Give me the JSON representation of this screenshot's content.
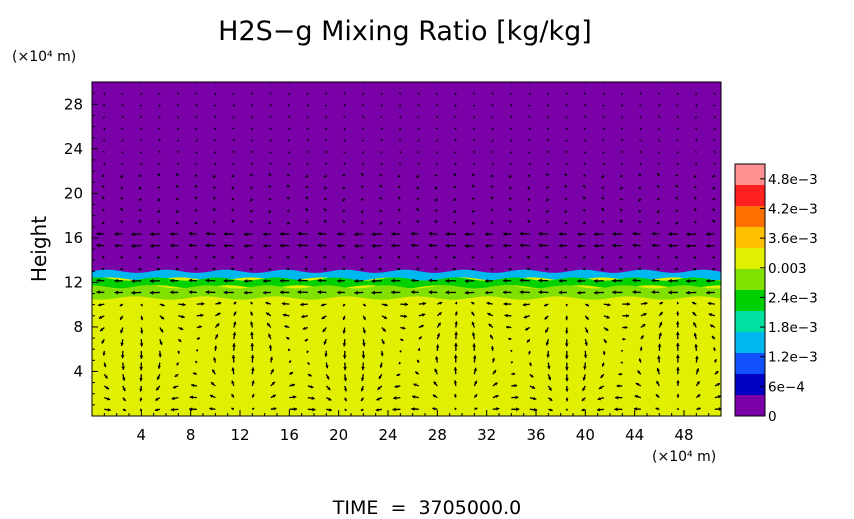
{
  "chart_data": {
    "type": "heatmap",
    "title": "H2S−g Mixing Ratio [kg/kg]",
    "ylabel": "Height",
    "x_unit": "(×10⁴ m)",
    "y_unit": "(×10⁴ m)",
    "footer": "TIME  =  3705000.0",
    "xlim": [
      0,
      51
    ],
    "ylim": [
      0,
      30
    ],
    "x_ticks": [
      4,
      8,
      12,
      16,
      20,
      24,
      28,
      32,
      36,
      40,
      44,
      48
    ],
    "y_ticks": [
      4,
      8,
      12,
      16,
      20,
      24,
      28
    ],
    "colorbar": {
      "range": [
        0,
        0.0051
      ],
      "tick_values": [
        0,
        0.0006,
        0.0012,
        0.0018,
        0.0024,
        0.003,
        0.0036,
        0.0042,
        0.0048
      ],
      "tick_labels": [
        "0",
        "6e−4",
        "1.2e−3",
        "1.8e−3",
        "2.4e−3",
        "0.003",
        "3.6e−3",
        "4.2e−3",
        "4.8e−3"
      ],
      "colors": [
        "#7a00a8",
        "#0000c0",
        "#1050ff",
        "#00b8f0",
        "#00e0a0",
        "#00d000",
        "#80e000",
        "#e0f000",
        "#ffc000",
        "#ff7000",
        "#ff2020",
        "#ff9090"
      ]
    },
    "field": {
      "upper_value": 0.0,
      "lower_value": 0.0033,
      "interface_height": 12.6,
      "layers": [
        {
          "y_min": 12.3,
          "y_max": 13.0,
          "value": 0.0015
        },
        {
          "y_min": 11.6,
          "y_max": 12.3,
          "value": 0.0022
        },
        {
          "y_min": 10.6,
          "y_max": 11.6,
          "value": 0.0027
        },
        {
          "y_min": 9.4,
          "y_max": 10.2,
          "value": 0.0031
        }
      ]
    },
    "vector_field": {
      "description_free": true,
      "upper_jet_heights": [
        12.8,
        14.9
      ],
      "vortex_centers_x": [
        8,
        25,
        45
      ],
      "vortex_center_height": 3.0
    }
  }
}
